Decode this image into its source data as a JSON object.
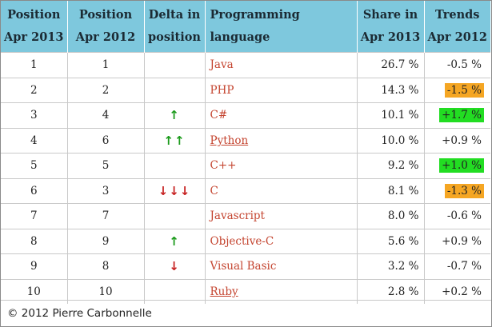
{
  "header": {
    "col1": [
      "Position",
      "Apr 2013"
    ],
    "col2": [
      "Position",
      "Apr 2012"
    ],
    "col3": [
      "Delta in",
      "position"
    ],
    "col4": "Programming language",
    "col5": [
      "Share in",
      "Apr 2013"
    ],
    "col6": [
      "Trends",
      "Apr 2012"
    ]
  },
  "colors": {
    "header_bg": "#7ec8dd",
    "link_red": "#c4442f",
    "arrow_up": "#1a9a1a",
    "arrow_down": "#c62020",
    "trend_green": "#22dd22",
    "trend_orange": "#f5a623"
  },
  "rows": [
    {
      "pos2013": "1",
      "pos2012": "1",
      "delta": "",
      "delta_dir": "none",
      "lang": "Java",
      "lang_link": false,
      "share": "26.7 %",
      "trend": "-0.5 %",
      "trend_hl": "none"
    },
    {
      "pos2013": "2",
      "pos2012": "2",
      "delta": "",
      "delta_dir": "none",
      "lang": "PHP",
      "lang_link": false,
      "share": "14.3 %",
      "trend": "-1.5 %",
      "trend_hl": "orange"
    },
    {
      "pos2013": "3",
      "pos2012": "4",
      "delta": "↑",
      "delta_dir": "up",
      "lang": "C#",
      "lang_link": false,
      "share": "10.1 %",
      "trend": "+1.7 %",
      "trend_hl": "green"
    },
    {
      "pos2013": "4",
      "pos2012": "6",
      "delta": "↑↑",
      "delta_dir": "up",
      "lang": "Python",
      "lang_link": true,
      "share": "10.0 %",
      "trend": "+0.9 %",
      "trend_hl": "none"
    },
    {
      "pos2013": "5",
      "pos2012": "5",
      "delta": "",
      "delta_dir": "none",
      "lang": "C++",
      "lang_link": false,
      "share": "9.2 %",
      "trend": "+1.0 %",
      "trend_hl": "green"
    },
    {
      "pos2013": "6",
      "pos2012": "3",
      "delta": "↓↓↓",
      "delta_dir": "down",
      "lang": "C",
      "lang_link": false,
      "share": "8.1 %",
      "trend": "-1.3 %",
      "trend_hl": "orange"
    },
    {
      "pos2013": "7",
      "pos2012": "7",
      "delta": "",
      "delta_dir": "none",
      "lang": "Javascript",
      "lang_link": false,
      "share": "8.0 %",
      "trend": "-0.6 %",
      "trend_hl": "none"
    },
    {
      "pos2013": "8",
      "pos2012": "9",
      "delta": "↑",
      "delta_dir": "up",
      "lang": "Objective-C",
      "lang_link": false,
      "share": "5.6 %",
      "trend": "+0.9 %",
      "trend_hl": "none"
    },
    {
      "pos2013": "9",
      "pos2012": "8",
      "delta": "↓",
      "delta_dir": "down",
      "lang": "Visual Basic",
      "lang_link": false,
      "share": "3.2 %",
      "trend": "-0.7 %",
      "trend_hl": "none"
    },
    {
      "pos2013": "10",
      "pos2012": "10",
      "delta": "",
      "delta_dir": "none",
      "lang": "Ruby",
      "lang_link": true,
      "share": "2.8 %",
      "trend": "+0.2 %",
      "trend_hl": "none"
    }
  ],
  "footer": "© 2012 Pierre Carbonnelle"
}
